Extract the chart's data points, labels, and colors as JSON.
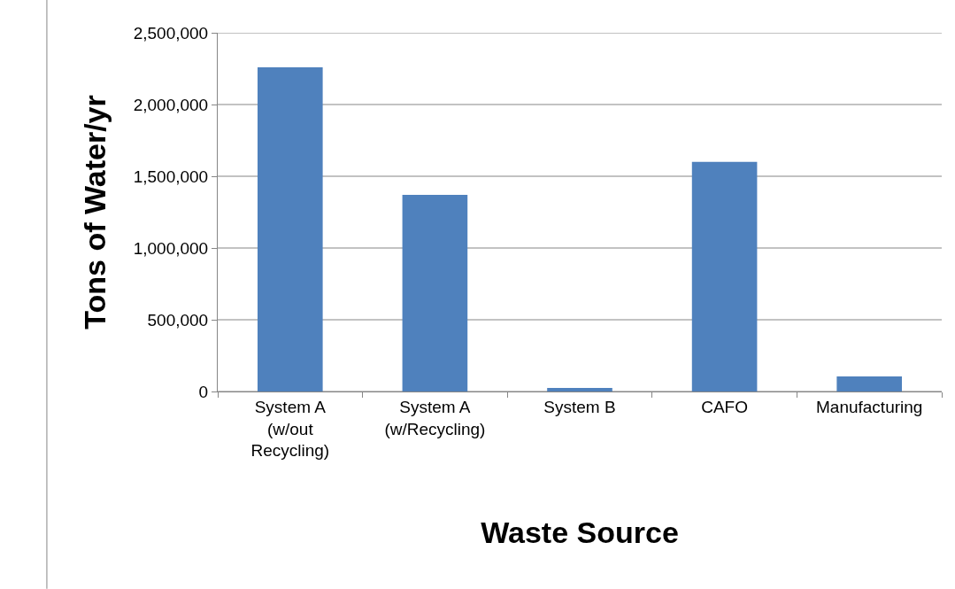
{
  "chart_data": {
    "type": "bar",
    "xlabel": "Waste Source",
    "ylabel": "Tons of Water/yr",
    "categories": [
      "System A\n(w/out\nRecycling)",
      "System A\n(w/Recycling)",
      "System B",
      "CAFO",
      "Manufacturing"
    ],
    "values": [
      2260000,
      1370000,
      25000,
      1600000,
      105000
    ],
    "color": "#4f81bd",
    "ylim": [
      0,
      2500000
    ],
    "yticks": [
      {
        "value": 0,
        "label": "0"
      },
      {
        "value": 500000,
        "label": "500,000"
      },
      {
        "value": 1000000,
        "label": "1,000,000"
      },
      {
        "value": 1500000,
        "label": "1,500,000"
      },
      {
        "value": 2000000,
        "label": "2,000,000"
      },
      {
        "value": 2500000,
        "label": "2,500,000"
      }
    ],
    "grid": "y"
  }
}
